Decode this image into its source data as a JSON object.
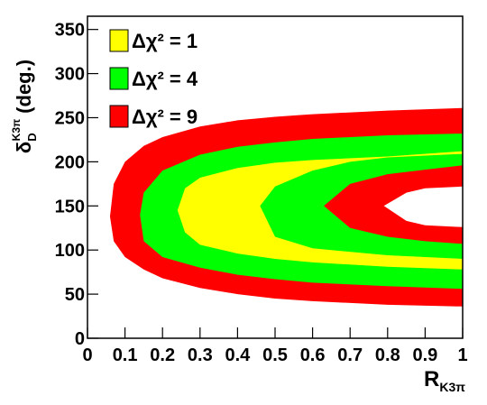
{
  "chart_data": {
    "type": "contour",
    "x_label": {
      "symbol": "R",
      "sub": "K3π"
    },
    "y_label": {
      "symbol": "δ",
      "sub": "D",
      "sup": "K3π",
      "unit": "(deg.)"
    },
    "xlim": [
      0,
      1
    ],
    "xticks": [
      0,
      0.1,
      0.2,
      0.3,
      0.4,
      0.5,
      0.6,
      0.7,
      0.8,
      0.9,
      1
    ],
    "ylim": [
      0,
      365
    ],
    "yticks": [
      0,
      50,
      100,
      150,
      200,
      250,
      300,
      350
    ],
    "legend": "top-left",
    "series": [
      {
        "name": "Δχ² = 9",
        "color": "#ff0000",
        "outer": {
          "x": [
            0.06,
            0.07,
            0.1,
            0.15,
            0.2,
            0.3,
            0.4,
            0.5,
            0.6,
            0.8,
            1,
            1,
            0.8,
            0.6,
            0.5,
            0.4,
            0.3,
            0.2,
            0.15,
            0.1,
            0.07
          ],
          "y": [
            138,
            175,
            200,
            218,
            228,
            240,
            247,
            251,
            254,
            258,
            261,
            36,
            38,
            42,
            45,
            50,
            57,
            68,
            78,
            92,
            110
          ]
        },
        "inner": {
          "x": [
            0.79,
            0.85,
            0.9,
            1,
            1,
            0.9,
            0.85
          ],
          "y": [
            150,
            165,
            170,
            172,
            126,
            128,
            133
          ]
        }
      },
      {
        "name": "Δχ² = 4",
        "color": "#00ff00",
        "outer": {
          "x": [
            0.14,
            0.15,
            0.2,
            0.3,
            0.4,
            0.5,
            0.6,
            0.8,
            1,
            1,
            0.8,
            0.6,
            0.5,
            0.4,
            0.3,
            0.2,
            0.15
          ],
          "y": [
            140,
            165,
            190,
            208,
            217,
            222,
            226,
            230,
            232,
            56,
            59,
            63,
            67,
            72,
            80,
            92,
            110
          ]
        },
        "inner": {
          "x": [
            0.63,
            0.7,
            0.8,
            0.9,
            1,
            1,
            0.9,
            0.8,
            0.7
          ],
          "y": [
            150,
            175,
            186,
            191,
            196,
            107,
            110,
            115,
            125
          ]
        }
      },
      {
        "name": "Δχ² = 1",
        "color": "#ffff00",
        "outer": {
          "x": [
            0.24,
            0.26,
            0.3,
            0.4,
            0.5,
            0.6,
            0.8,
            1,
            1,
            0.8,
            0.6,
            0.5,
            0.4,
            0.3,
            0.26
          ],
          "y": [
            145,
            170,
            182,
            193,
            199,
            202,
            206,
            212,
            78,
            81,
            86,
            90,
            96,
            106,
            120
          ]
        },
        "inner": {
          "x": [
            0.46,
            0.5,
            0.6,
            0.7,
            0.8,
            1,
            1,
            0.8,
            0.6,
            0.5
          ],
          "y": [
            150,
            172,
            190,
            200,
            205,
            209,
            90,
            94,
            102,
            115
          ]
        }
      }
    ]
  }
}
